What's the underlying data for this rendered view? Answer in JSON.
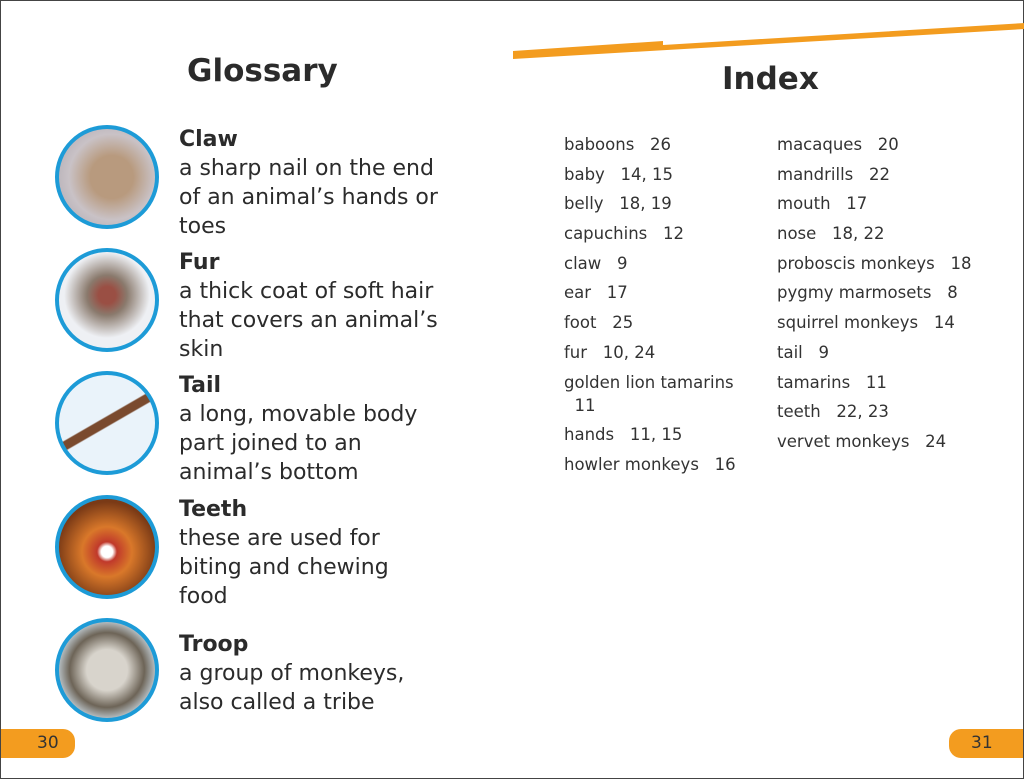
{
  "glossary": {
    "title": "Glossary",
    "entries": [
      {
        "term": "Claw",
        "definition": "a sharp nail on the end of an animal’s hands or toes",
        "image": "monkey-claw-photo"
      },
      {
        "term": "Fur",
        "definition": "a thick coat of soft hair that covers an animal’s skin",
        "image": "snow-monkey-photo"
      },
      {
        "term": "Tail",
        "definition": "a long, movable body part joined to an animal’s bottom",
        "image": "monkey-on-branch-photo"
      },
      {
        "term": "Teeth",
        "definition": "these are used for biting and chewing food",
        "image": "golden-monkey-teeth-photo"
      },
      {
        "term": "Troop",
        "definition": "a group of monkeys, also called a tribe",
        "image": "monkey-troop-photo"
      }
    ]
  },
  "index": {
    "title": "Index",
    "col1": [
      "baboons   26",
      "baby   14, 15",
      "belly   18, 19",
      "capuchins   12",
      "claw   9",
      "ear   17",
      "foot   25",
      "fur   10, 24",
      "golden lion tamarins\n  11",
      "hands   11, 15",
      "howler monkeys   16"
    ],
    "col2": [
      "macaques   20",
      "mandrills   22",
      "mouth   17",
      "nose   18, 22",
      "proboscis monkeys   18",
      "pygmy marmosets   8",
      "squirrel monkeys   14",
      "tail   9",
      "tamarins   11",
      "teeth   22, 23",
      "vervet monkeys   24"
    ]
  },
  "pages": {
    "left": "30",
    "right": "31"
  },
  "colors": {
    "accent": "#f39c1f",
    "circle_border": "#1d9bd7"
  }
}
